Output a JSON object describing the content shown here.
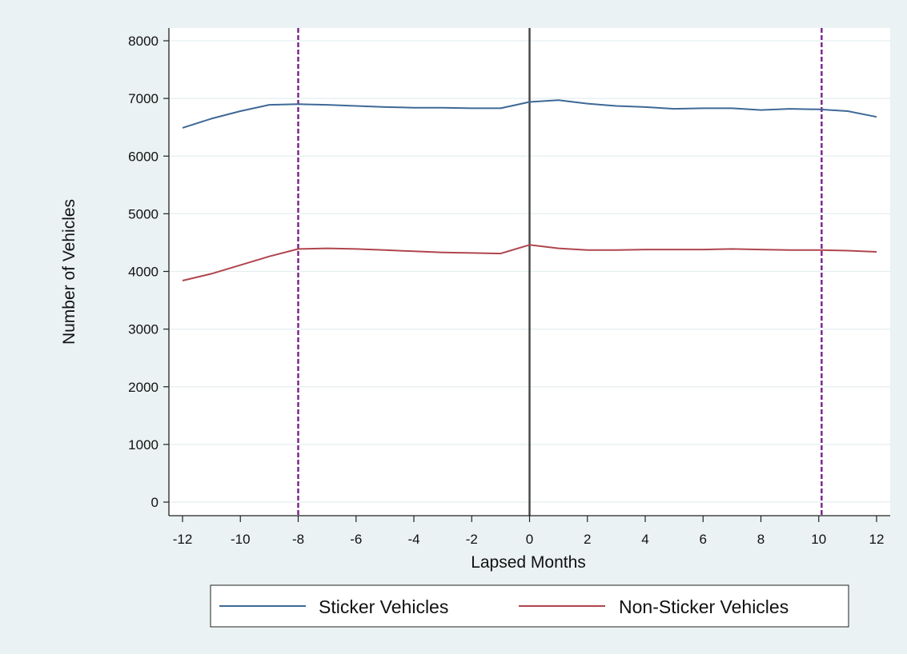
{
  "chart_data": {
    "type": "line",
    "title": "",
    "xlabel": "Lapsed Months",
    "ylabel": "Number of Vehicles",
    "xlim": [
      -12,
      12
    ],
    "ylim": [
      0,
      8000
    ],
    "xticks": [
      -12,
      -10,
      -8,
      -6,
      -4,
      -2,
      0,
      2,
      4,
      6,
      8,
      10,
      12
    ],
    "yticks": [
      0,
      1000,
      2000,
      3000,
      4000,
      5000,
      6000,
      7000,
      8000
    ],
    "grid": true,
    "legend_position": "bottom",
    "background_color": "#eaf2f3",
    "plot_background_color": "#ffffff",
    "x": [
      -12,
      -11,
      -10,
      -9,
      -8,
      -7,
      -6,
      -5,
      -4,
      -3,
      -2,
      -1,
      0,
      1,
      2,
      3,
      4,
      5,
      6,
      7,
      8,
      9,
      10,
      11,
      12
    ],
    "series": [
      {
        "name": "Sticker Vehicles",
        "color": "#3e6896",
        "values": [
          6490,
          6650,
          6780,
          6890,
          6900,
          6890,
          6870,
          6850,
          6840,
          6840,
          6830,
          6830,
          6940,
          6970,
          6910,
          6870,
          6850,
          6820,
          6830,
          6830,
          6800,
          6820,
          6810,
          6780,
          6680
        ]
      },
      {
        "name": "Non-Sticker Vehicles",
        "color": "#b0454d",
        "values": [
          3840,
          3960,
          4110,
          4260,
          4390,
          4400,
          4390,
          4370,
          4350,
          4330,
          4320,
          4310,
          4460,
          4400,
          4370,
          4370,
          4380,
          4380,
          4380,
          4390,
          4380,
          4370,
          4370,
          4360,
          4340
        ]
      }
    ],
    "reference_lines": [
      {
        "x": 0,
        "color": "#444444",
        "style": "solid"
      },
      {
        "x": -8,
        "color": "#7a1e8c",
        "style": "dashed"
      },
      {
        "x": 10.1,
        "color": "#7a1e8c",
        "style": "dashed"
      }
    ]
  }
}
